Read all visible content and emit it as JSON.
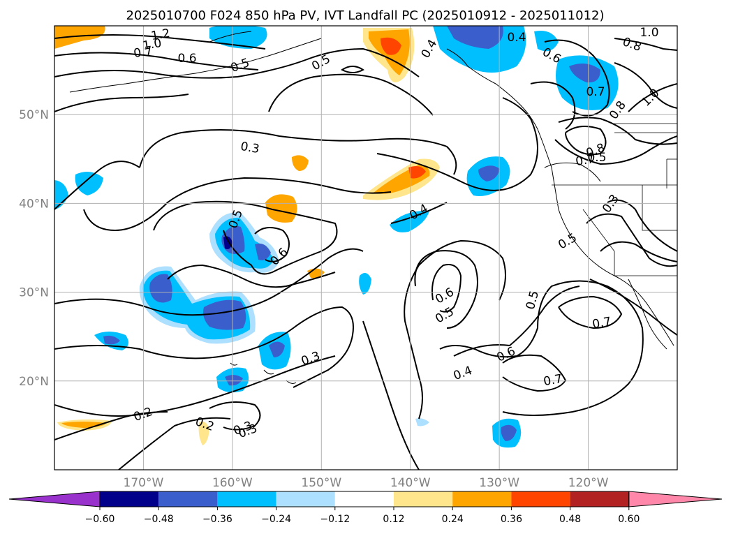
{
  "title": "2025010700 F024 850 hPa PV, IVT Landfall PC (2025010912 - 2025011012)",
  "map": {
    "lon_range": [
      -180,
      -110
    ],
    "lat_range": [
      10,
      60
    ],
    "lon_ticks": [
      {
        "lon": -170,
        "label": "170°W"
      },
      {
        "lon": -160,
        "label": "160°W"
      },
      {
        "lon": -150,
        "label": "150°W"
      },
      {
        "lon": -140,
        "label": "140°W"
      },
      {
        "lon": -130,
        "label": "130°W"
      },
      {
        "lon": -120,
        "label": "120°W"
      }
    ],
    "lat_ticks": [
      {
        "lat": 50,
        "label": "50°N"
      },
      {
        "lat": 40,
        "label": "40°N"
      },
      {
        "lat": 30,
        "label": "30°N"
      },
      {
        "lat": 20,
        "label": "20°N"
      }
    ],
    "grid": true,
    "contour_labels": [
      "1.2",
      "1.0",
      "0.7",
      "0.6",
      "0.5",
      "0.5",
      "0.4",
      "0.4",
      "0.6",
      "0.8",
      "0.7",
      "0.5",
      "0.8",
      "1.0",
      "0.3",
      "0.8",
      "0.7",
      "0.3",
      "0.5",
      "0.4",
      "0.5",
      "0.6",
      "0.6",
      "0.5",
      "0.5",
      "0.7",
      "0.6",
      "0.4",
      "0.7",
      "0.3",
      "0.3",
      "0.2",
      "0.2",
      "0.3",
      "1.0"
    ]
  },
  "colorbar": {
    "ticks": [
      "−0.60",
      "−0.48",
      "−0.36",
      "−0.24",
      "−0.12",
      "0.12",
      "0.24",
      "0.36",
      "0.48",
      "0.60"
    ],
    "colors": [
      "#9932CC",
      "#00008B",
      "#3A5FCD",
      "#00BFFF",
      "#ADDFFF",
      "#FFFFFF",
      "#FFE68C",
      "#FFA500",
      "#FF4500",
      "#B22222",
      "#FF88AA"
    ]
  }
}
